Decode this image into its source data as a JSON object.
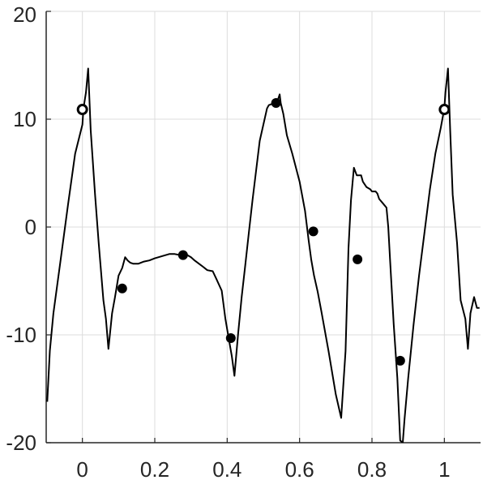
{
  "chart_data": {
    "type": "line",
    "title": "",
    "xlabel": "",
    "ylabel": "",
    "xlim": [
      -0.1,
      1.1
    ],
    "ylim": [
      -20,
      20
    ],
    "grid": true,
    "x_ticks": [
      0,
      0.2,
      0.4,
      0.6,
      0.8,
      1
    ],
    "x_tick_labels": [
      "0",
      "0.2",
      "0.4",
      "0.6",
      "0.8",
      "1"
    ],
    "y_ticks": [
      -20,
      -10,
      0,
      10,
      20
    ],
    "y_tick_labels": [
      "-20",
      "-10",
      "0",
      "10",
      "20"
    ],
    "colors": {
      "line": "#000000",
      "grid": "#dcdcdc",
      "axis": "#262626",
      "marker": "#000000",
      "open_marker_fill": "#ffffff"
    },
    "series": [
      {
        "style": "line",
        "x": [
          -0.097,
          -0.09,
          -0.08,
          -0.07,
          -0.06,
          -0.04,
          -0.02,
          -0.0,
          0.003,
          0.01,
          0.016,
          0.023,
          0.035,
          0.045,
          0.058,
          0.065,
          0.072,
          0.082,
          0.09,
          0.1,
          0.11,
          0.118,
          0.125,
          0.132,
          0.14,
          0.155,
          0.17,
          0.185,
          0.2,
          0.22,
          0.24,
          0.255,
          0.27,
          0.28,
          0.29,
          0.3,
          0.31,
          0.33,
          0.345,
          0.36,
          0.37,
          0.385,
          0.395,
          0.405,
          0.413,
          0.42,
          0.43,
          0.44,
          0.45,
          0.46,
          0.47,
          0.49,
          0.51,
          0.515,
          0.53,
          0.535,
          0.54,
          0.545,
          0.548,
          0.555,
          0.565,
          0.58,
          0.6,
          0.615,
          0.625,
          0.632,
          0.64,
          0.65,
          0.66,
          0.68,
          0.7,
          0.715,
          0.727,
          0.735,
          0.742,
          0.75,
          0.758,
          0.765,
          0.77,
          0.775,
          0.785,
          0.795,
          0.8,
          0.81,
          0.815,
          0.82,
          0.83,
          0.84,
          0.845,
          0.85,
          0.86,
          0.87,
          0.878,
          0.885,
          0.89,
          0.9,
          0.915,
          0.93,
          0.945,
          0.96,
          0.975,
          0.99,
          1.0,
          1.003,
          1.01,
          1.016,
          1.023,
          1.035,
          1.045,
          1.058,
          1.065,
          1.072,
          1.082,
          1.09,
          1.097
        ],
        "y": [
          -16.2,
          -11.5,
          -8,
          -5.5,
          -3,
          2,
          6.8,
          9.5,
          11,
          12.5,
          14.7,
          9,
          3,
          -1.5,
          -6.8,
          -8.5,
          -11.3,
          -8,
          -6.5,
          -4.5,
          -3.8,
          -2.8,
          -3.1,
          -3.3,
          -3.4,
          -3.4,
          -3.2,
          -3.1,
          -2.9,
          -2.7,
          -2.5,
          -2.5,
          -2.6,
          -2.7,
          -2.6,
          -2.8,
          -3.1,
          -3.6,
          -4,
          -4.1,
          -4.8,
          -5.9,
          -8.5,
          -10.5,
          -12,
          -13.8,
          -10,
          -6.5,
          -3.5,
          -0.5,
          2.5,
          8,
          11,
          11.3,
          11.5,
          11.8,
          11.8,
          12.3,
          11.5,
          10.5,
          8.5,
          6.8,
          4.2,
          1.5,
          -1.2,
          -3,
          -4.5,
          -6,
          -7.8,
          -11.5,
          -15.5,
          -17.7,
          -11.5,
          -2,
          2.5,
          5.5,
          4.8,
          4.8,
          4.8,
          4.2,
          3.7,
          3.5,
          3.3,
          3.3,
          3.1,
          2.6,
          2.2,
          1.8,
          0,
          -3,
          -9,
          -14,
          -19.8,
          -20,
          -17.8,
          -14,
          -9,
          -4.5,
          -0.5,
          3.5,
          6.8,
          9.2,
          11,
          12.5,
          14.7,
          9,
          3,
          -1.5,
          -6.8,
          -8.5,
          -11.3,
          -8,
          -6.5,
          -7.5,
          -7.5
        ]
      },
      {
        "style": "markers",
        "marker": "filled-circle",
        "x": [
          0.11,
          0.278,
          0.41,
          0.535,
          0.638,
          0.76,
          0.878
        ],
        "y": [
          -5.7,
          -2.6,
          -10.3,
          11.5,
          -0.4,
          -3.0,
          -12.4
        ]
      },
      {
        "style": "markers",
        "marker": "open-circle",
        "x": [
          0.0,
          1.0
        ],
        "y": [
          10.9,
          10.9
        ]
      }
    ]
  }
}
